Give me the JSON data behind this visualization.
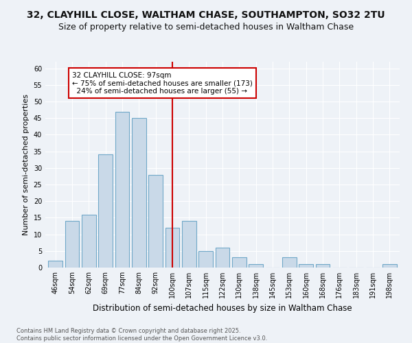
{
  "title_line1": "32, CLAYHILL CLOSE, WALTHAM CHASE, SOUTHAMPTON, SO32 2TU",
  "title_line2": "Size of property relative to semi-detached houses in Waltham Chase",
  "xlabel": "Distribution of semi-detached houses by size in Waltham Chase",
  "ylabel": "Number of semi-detached properties",
  "categories": [
    "46sqm",
    "54sqm",
    "62sqm",
    "69sqm",
    "77sqm",
    "84sqm",
    "92sqm",
    "100sqm",
    "107sqm",
    "115sqm",
    "122sqm",
    "130sqm",
    "138sqm",
    "145sqm",
    "153sqm",
    "160sqm",
    "168sqm",
    "176sqm",
    "183sqm",
    "191sqm",
    "198sqm"
  ],
  "values": [
    2,
    14,
    16,
    34,
    47,
    45,
    28,
    12,
    14,
    5,
    6,
    3,
    1,
    0,
    3,
    1,
    1,
    0,
    0,
    0,
    1
  ],
  "bar_color": "#c9d9e8",
  "bar_edge_color": "#6fa8c8",
  "pct_smaller": 75,
  "n_smaller": 173,
  "pct_larger": 24,
  "n_larger": 55,
  "vline_color": "#cc0000",
  "ylim": [
    0,
    62
  ],
  "yticks": [
    0,
    5,
    10,
    15,
    20,
    25,
    30,
    35,
    40,
    45,
    50,
    55,
    60
  ],
  "bg_color": "#eef2f7",
  "footer": "Contains HM Land Registry data © Crown copyright and database right 2025.\nContains public sector information licensed under the Open Government Licence v3.0.",
  "title_fontsize": 10,
  "subtitle_fontsize": 9,
  "xlabel_fontsize": 8.5,
  "ylabel_fontsize": 8,
  "tick_fontsize": 7,
  "footer_fontsize": 6,
  "ann_fontsize": 7.5
}
